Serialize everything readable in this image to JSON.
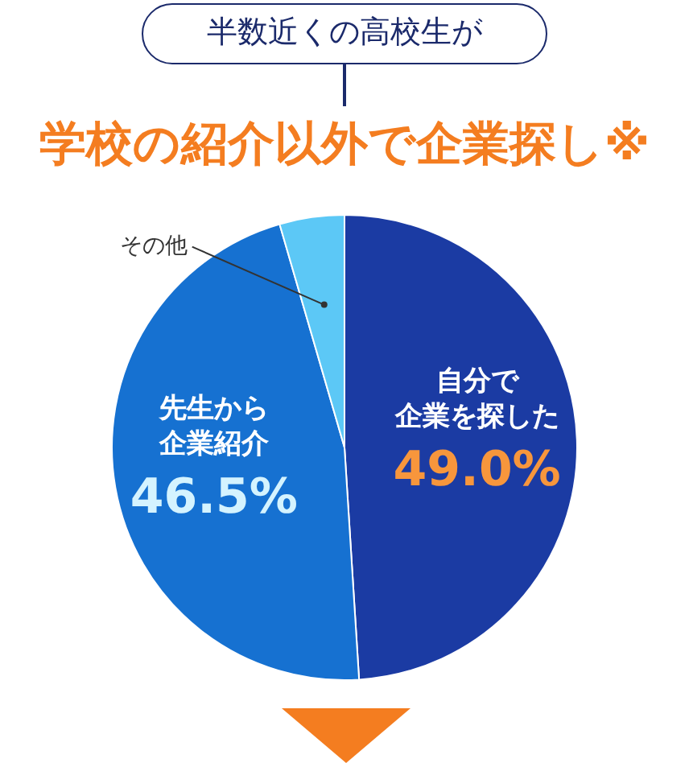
{
  "chart_data": {
    "type": "pie",
    "title": "半数近くの高校生が",
    "subtitle": "学校の紹介以外で企業探し※",
    "categories": [
      "自分で企業を探した",
      "先生から企業紹介",
      "その他"
    ],
    "values": [
      49.0,
      46.5,
      4.5
    ],
    "colors": [
      "#1b3ba3",
      "#1671d1",
      "#5cc8f6"
    ],
    "value_labels": [
      "49.0%",
      "46.5%",
      null
    ],
    "legend": false
  }
}
